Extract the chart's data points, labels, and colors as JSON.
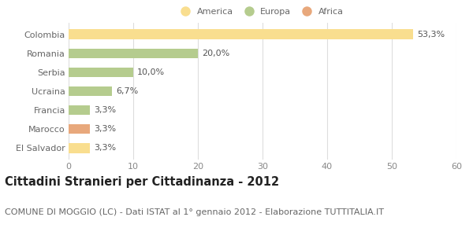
{
  "categories": [
    "Colombia",
    "Romania",
    "Serbia",
    "Ucraina",
    "Francia",
    "Marocco",
    "El Salvador"
  ],
  "values": [
    53.3,
    20.0,
    10.0,
    6.7,
    3.3,
    3.3,
    3.3
  ],
  "labels": [
    "53,3%",
    "20,0%",
    "10,0%",
    "6,7%",
    "3,3%",
    "3,3%",
    "3,3%"
  ],
  "colors": [
    "#F9DE8F",
    "#B5CC8E",
    "#B5CC8E",
    "#B5CC8E",
    "#B5CC8E",
    "#E8A87C",
    "#F9DE8F"
  ],
  "legend_labels": [
    "America",
    "Europa",
    "Africa"
  ],
  "legend_colors": [
    "#F9DE8F",
    "#B5CC8E",
    "#E8A87C"
  ],
  "title": "Cittadini Stranieri per Cittadinanza - 2012",
  "subtitle": "COMUNE DI MOGGIO (LC) - Dati ISTAT al 1° gennaio 2012 - Elaborazione TUTTITALIA.IT",
  "xlim": [
    0,
    60
  ],
  "xticks": [
    0,
    10,
    20,
    30,
    40,
    50,
    60
  ],
  "background_color": "#ffffff",
  "grid_color": "#dddddd",
  "bar_height": 0.5,
  "label_fontsize": 8,
  "tick_fontsize": 8,
  "title_fontsize": 10.5,
  "subtitle_fontsize": 8,
  "ytick_color": "#666666",
  "xtick_color": "#888888",
  "label_color": "#555555",
  "title_color": "#222222",
  "subtitle_color": "#666666"
}
